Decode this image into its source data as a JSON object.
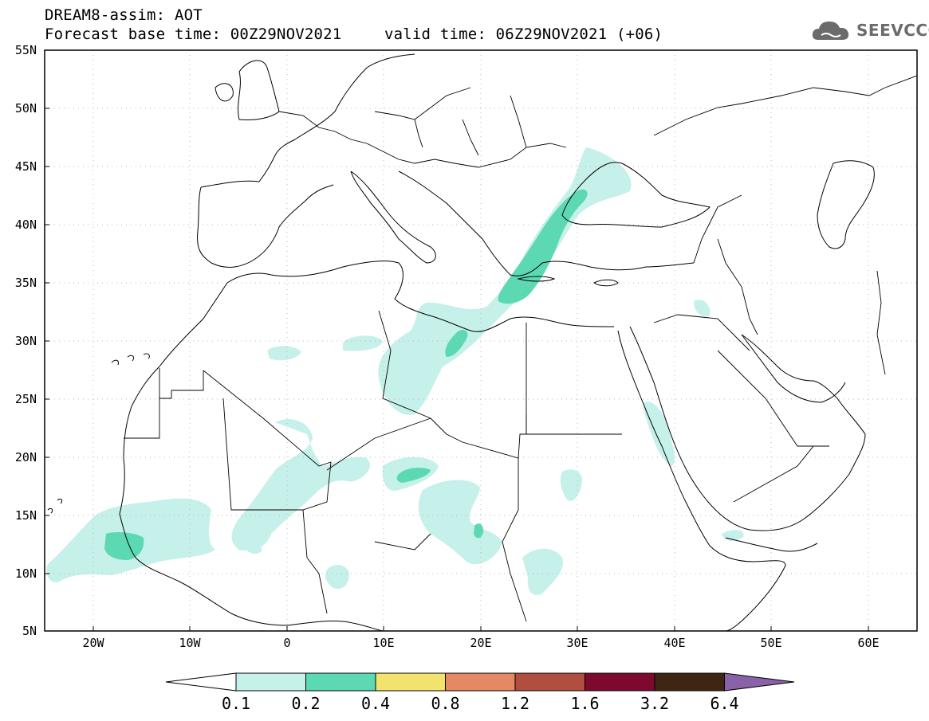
{
  "header": {
    "model_line": "DREAM8-assim: AOT",
    "base_time": "Forecast base time: 00Z29NOV2021",
    "valid_time": "valid time: 06Z29NOV2021 (+06)"
  },
  "logo": {
    "text": "SEEVCCC",
    "icon": "cloud-icon"
  },
  "map": {
    "lat_labels": [
      "55N",
      "50N",
      "45N",
      "40N",
      "35N",
      "30N",
      "25N",
      "20N",
      "15N",
      "10N",
      "5N"
    ],
    "lon_labels": [
      "20W",
      "10W",
      "0",
      "10E",
      "20E",
      "30E",
      "40E",
      "50E",
      "60E"
    ],
    "lon_range": [
      -25,
      65
    ],
    "lat_range": [
      5,
      55
    ],
    "grid": "dotted"
  },
  "colorbar": {
    "ticks": [
      "0.1",
      "0.2",
      "0.4",
      "0.8",
      "1.2",
      "1.6",
      "3.2",
      "6.4"
    ],
    "colors": [
      "#ffffff",
      "#c6f0ea",
      "#5cd8b2",
      "#f2e36f",
      "#e38a65",
      "#b04e40",
      "#7d0a2e",
      "#3e2613",
      "#8a62a8"
    ]
  },
  "chart_data": {
    "type": "heatmap",
    "variable": "AOT",
    "levels": [
      0.1,
      0.2,
      0.4,
      0.8,
      1.2,
      1.6,
      3.2,
      6.4
    ]
  }
}
